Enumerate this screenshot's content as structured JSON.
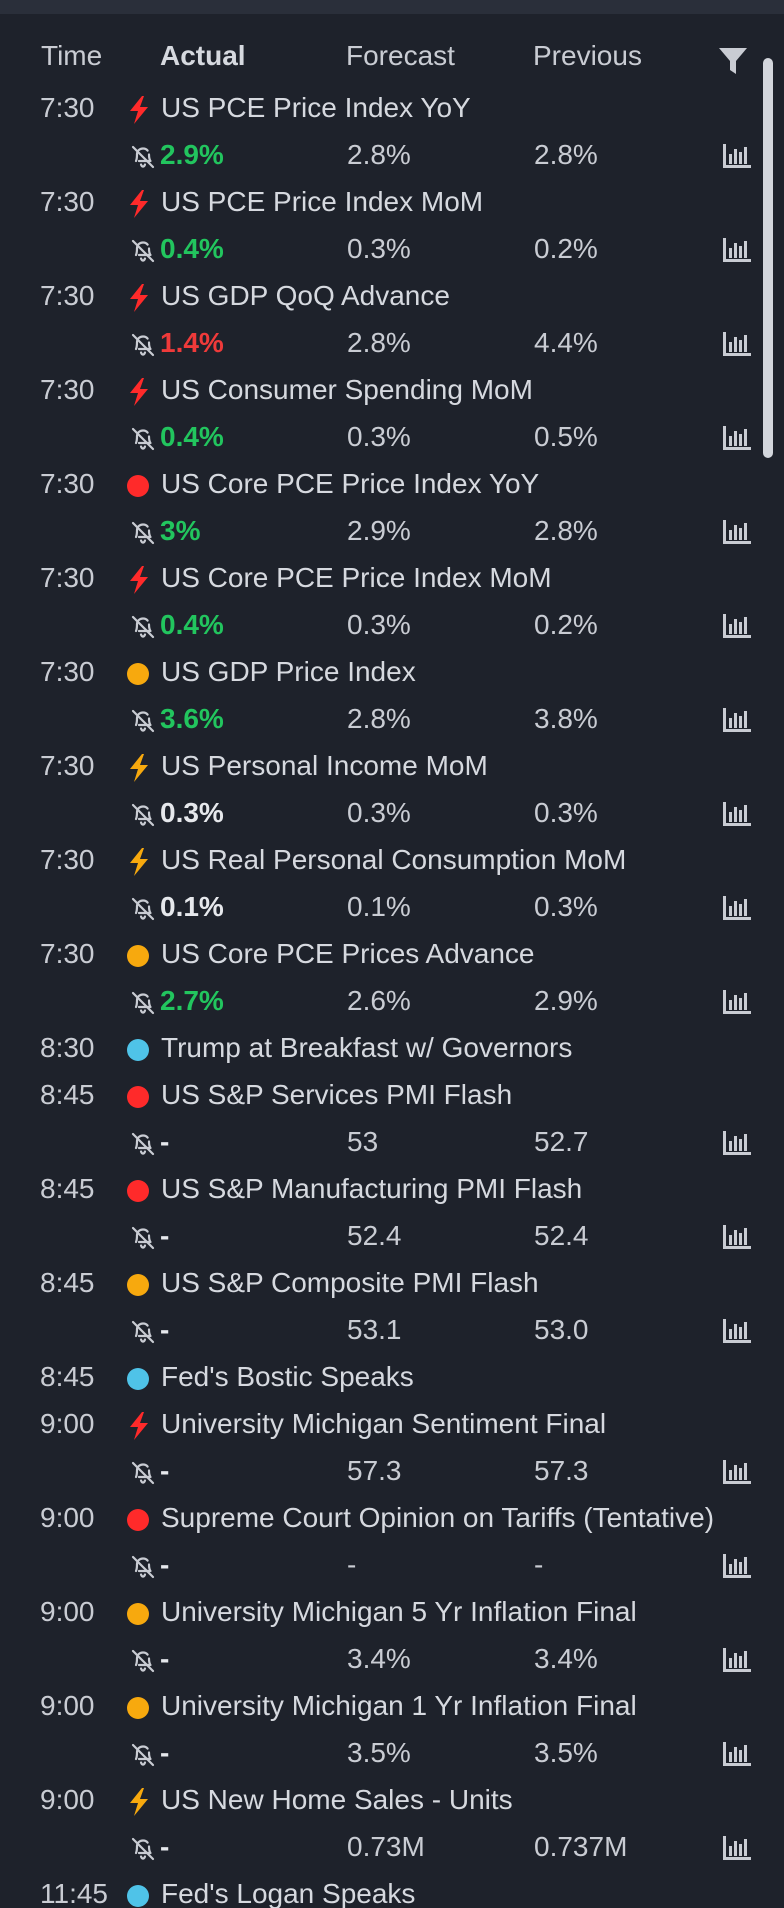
{
  "header": {
    "time": "Time",
    "actual": "Actual",
    "forecast": "Forecast",
    "previous": "Previous",
    "filter_icon": "filter-icon"
  },
  "colors": {
    "background": "#1e222b",
    "positive": "#22c55e",
    "negative": "#ef3a3a",
    "importance_high": "#ff2a2a",
    "importance_medium": "#f7a90e",
    "importance_info": "#4fc3e8"
  },
  "events": [
    {
      "time": "7:30",
      "impact": "bolt-red",
      "title": "US PCE Price Index YoY",
      "actual": "2.9%",
      "actual_tone": "pos",
      "forecast": "2.8%",
      "previous": "2.8%",
      "has_values": true
    },
    {
      "time": "7:30",
      "impact": "bolt-red",
      "title": "US PCE Price Index MoM",
      "actual": "0.4%",
      "actual_tone": "pos",
      "forecast": "0.3%",
      "previous": "0.2%",
      "has_values": true
    },
    {
      "time": "7:30",
      "impact": "bolt-red",
      "title": "US GDP QoQ Advance",
      "actual": "1.4%",
      "actual_tone": "neg",
      "forecast": "2.8%",
      "previous": "4.4%",
      "has_values": true
    },
    {
      "time": "7:30",
      "impact": "bolt-red",
      "title": "US Consumer Spending MoM",
      "actual": "0.4%",
      "actual_tone": "pos",
      "forecast": "0.3%",
      "previous": "0.5%",
      "has_values": true
    },
    {
      "time": "7:30",
      "impact": "dot-red",
      "title": "US Core PCE Price Index YoY",
      "actual": "3%",
      "actual_tone": "pos",
      "forecast": "2.9%",
      "previous": "2.8%",
      "has_values": true
    },
    {
      "time": "7:30",
      "impact": "bolt-red",
      "title": "US Core PCE Price Index MoM",
      "actual": "0.4%",
      "actual_tone": "pos",
      "forecast": "0.3%",
      "previous": "0.2%",
      "has_values": true
    },
    {
      "time": "7:30",
      "impact": "dot-orange",
      "title": "US GDP Price Index",
      "actual": "3.6%",
      "actual_tone": "pos",
      "forecast": "2.8%",
      "previous": "3.8%",
      "has_values": true
    },
    {
      "time": "7:30",
      "impact": "bolt-orange",
      "title": "US Personal Income MoM",
      "actual": "0.3%",
      "actual_tone": "neu",
      "forecast": "0.3%",
      "previous": "0.3%",
      "has_values": true
    },
    {
      "time": "7:30",
      "impact": "bolt-orange",
      "title": "US Real Personal Consumption MoM",
      "actual": "0.1%",
      "actual_tone": "neu",
      "forecast": "0.1%",
      "previous": "0.3%",
      "has_values": true
    },
    {
      "time": "7:30",
      "impact": "dot-orange",
      "title": "US Core PCE Prices Advance",
      "actual": "2.7%",
      "actual_tone": "pos",
      "forecast": "2.6%",
      "previous": "2.9%",
      "has_values": true
    },
    {
      "time": "8:30",
      "impact": "dot-blue",
      "title": "Trump at Breakfast w/ Governors",
      "has_values": false
    },
    {
      "time": "8:45",
      "impact": "dot-red",
      "title": "US S&P Services PMI Flash",
      "actual": "-",
      "actual_tone": "neu",
      "forecast": "53",
      "previous": "52.7",
      "has_values": true
    },
    {
      "time": "8:45",
      "impact": "dot-red",
      "title": "US S&P Manufacturing PMI Flash",
      "actual": "-",
      "actual_tone": "neu",
      "forecast": "52.4",
      "previous": "52.4",
      "has_values": true
    },
    {
      "time": "8:45",
      "impact": "dot-orange",
      "title": "US S&P Composite PMI Flash",
      "actual": "-",
      "actual_tone": "neu",
      "forecast": "53.1",
      "previous": "53.0",
      "has_values": true
    },
    {
      "time": "8:45",
      "impact": "dot-blue",
      "title": "Fed's Bostic Speaks",
      "has_values": false
    },
    {
      "time": "9:00",
      "impact": "bolt-red",
      "title": "University Michigan Sentiment Final",
      "actual": "-",
      "actual_tone": "neu",
      "forecast": "57.3",
      "previous": "57.3",
      "has_values": true
    },
    {
      "time": "9:00",
      "impact": "dot-red",
      "title": "Supreme Court Opinion on Tariffs (Tentative)",
      "actual": "-",
      "actual_tone": "neu",
      "forecast": "-",
      "previous": "-",
      "has_values": true
    },
    {
      "time": "9:00",
      "impact": "dot-orange",
      "title": "University Michigan 5 Yr Inflation Final",
      "actual": "-",
      "actual_tone": "neu",
      "forecast": "3.4%",
      "previous": "3.4%",
      "has_values": true
    },
    {
      "time": "9:00",
      "impact": "dot-orange",
      "title": "University Michigan 1 Yr Inflation Final",
      "actual": "-",
      "actual_tone": "neu",
      "forecast": "3.5%",
      "previous": "3.5%",
      "has_values": true
    },
    {
      "time": "9:00",
      "impact": "bolt-orange",
      "title": "US New Home Sales - Units",
      "actual": "-",
      "actual_tone": "neu",
      "forecast": "0.73M",
      "previous": "0.737M",
      "has_values": true
    },
    {
      "time": "11:45",
      "impact": "dot-blue",
      "title": "Fed's Logan Speaks",
      "has_values": false
    }
  ]
}
